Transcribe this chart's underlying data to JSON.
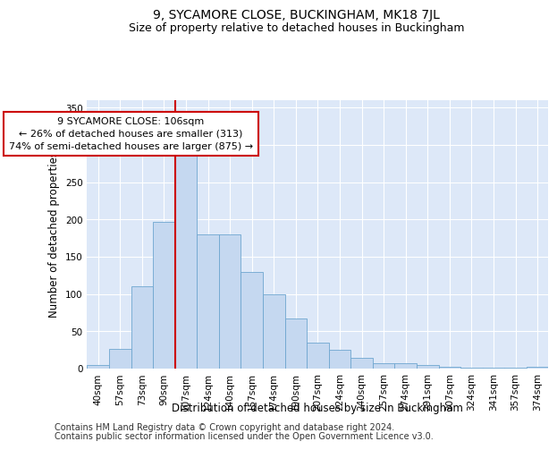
{
  "title": "9, SYCAMORE CLOSE, BUCKINGHAM, MK18 7JL",
  "subtitle": "Size of property relative to detached houses in Buckingham",
  "xlabel": "Distribution of detached houses by size in Buckingham",
  "ylabel": "Number of detached properties",
  "categories": [
    "40sqm",
    "57sqm",
    "73sqm",
    "90sqm",
    "107sqm",
    "124sqm",
    "140sqm",
    "157sqm",
    "174sqm",
    "190sqm",
    "207sqm",
    "224sqm",
    "240sqm",
    "257sqm",
    "274sqm",
    "291sqm",
    "307sqm",
    "324sqm",
    "341sqm",
    "357sqm",
    "374sqm"
  ],
  "values": [
    5,
    26,
    110,
    197,
    287,
    180,
    180,
    130,
    100,
    67,
    35,
    25,
    15,
    7,
    7,
    5,
    3,
    1,
    1,
    1,
    2
  ],
  "bar_color": "#c5d8f0",
  "bar_edge_color": "#6ea6d0",
  "vline_x_index": 4,
  "vline_color": "#cc0000",
  "annotation_text": "9 SYCAMORE CLOSE: 106sqm\n← 26% of detached houses are smaller (313)\n74% of semi-detached houses are larger (875) →",
  "annotation_box_color": "#ffffff",
  "annotation_box_edge_color": "#cc0000",
  "ylim": [
    0,
    360
  ],
  "yticks": [
    0,
    50,
    100,
    150,
    200,
    250,
    300,
    350
  ],
  "footer1": "Contains HM Land Registry data © Crown copyright and database right 2024.",
  "footer2": "Contains public sector information licensed under the Open Government Licence v3.0.",
  "bg_color": "#dde8f8",
  "fig_bg_color": "#ffffff",
  "title_fontsize": 10,
  "subtitle_fontsize": 9,
  "axis_label_fontsize": 8.5,
  "tick_fontsize": 7.5,
  "annotation_fontsize": 8,
  "footer_fontsize": 7
}
